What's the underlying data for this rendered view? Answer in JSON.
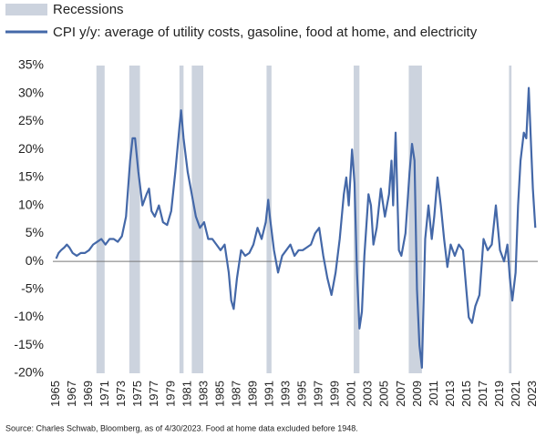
{
  "chart_data": {
    "type": "line",
    "source": "Source: Charles Schwab, Bloomberg, as of 4/30/2023. Food at home data excluded before 1948.",
    "recessions": {
      "name": "Recessions",
      "color": "#ccd3de",
      "periods": [
        [
          1969.9,
          1970.9
        ],
        [
          1973.9,
          1975.2
        ],
        [
          1980.0,
          1980.5
        ],
        [
          1981.5,
          1982.9
        ],
        [
          1990.6,
          1991.2
        ],
        [
          2001.2,
          2001.9
        ],
        [
          2007.9,
          2009.5
        ],
        [
          2020.1,
          2020.4
        ]
      ]
    },
    "x": [
      1965.0,
      1965.3,
      1965.6,
      1966.0,
      1966.3,
      1966.6,
      1967.0,
      1967.5,
      1968.0,
      1968.5,
      1969.0,
      1969.5,
      1970.0,
      1970.5,
      1971.0,
      1971.5,
      1972.0,
      1972.5,
      1973.0,
      1973.5,
      1974.0,
      1974.3,
      1974.6,
      1975.0,
      1975.5,
      1976.0,
      1976.3,
      1976.6,
      1977.0,
      1977.5,
      1978.0,
      1978.5,
      1979.0,
      1979.5,
      1980.0,
      1980.2,
      1980.5,
      1981.0,
      1981.5,
      1982.0,
      1982.5,
      1983.0,
      1983.5,
      1984.0,
      1984.5,
      1985.0,
      1985.5,
      1986.0,
      1986.3,
      1986.6,
      1987.0,
      1987.5,
      1988.0,
      1988.5,
      1989.0,
      1989.5,
      1990.0,
      1990.5,
      1990.8,
      1991.0,
      1991.5,
      1992.0,
      1992.5,
      1993.0,
      1993.5,
      1994.0,
      1994.5,
      1995.0,
      1995.5,
      1996.0,
      1996.5,
      1997.0,
      1997.5,
      1998.0,
      1998.5,
      1999.0,
      1999.5,
      2000.0,
      2000.3,
      2000.6,
      2001.0,
      2001.3,
      2001.6,
      2001.9,
      2002.2,
      2002.5,
      2003.0,
      2003.3,
      2003.6,
      2004.0,
      2004.5,
      2005.0,
      2005.5,
      2005.8,
      2006.0,
      2006.3,
      2006.7,
      2007.0,
      2007.5,
      2008.0,
      2008.3,
      2008.6,
      2008.9,
      2009.2,
      2009.5,
      2009.9,
      2010.3,
      2010.7,
      2011.0,
      2011.4,
      2011.8,
      2012.2,
      2012.6,
      2013.0,
      2013.5,
      2014.0,
      2014.5,
      2014.9,
      2015.2,
      2015.6,
      2016.0,
      2016.5,
      2017.0,
      2017.5,
      2018.0,
      2018.5,
      2019.0,
      2019.5,
      2019.9,
      2020.2,
      2020.5,
      2020.9,
      2021.2,
      2021.5,
      2021.9,
      2022.2,
      2022.5,
      2022.8,
      2023.0,
      2023.3
    ],
    "series": [
      {
        "name": "CPI y/y: average of utility costs, gasoline, food at home, and electricity",
        "color": "#4468a8",
        "values": [
          0.5,
          1.5,
          2,
          2.5,
          3,
          2.5,
          1.5,
          1,
          1.5,
          1.5,
          2,
          3,
          3.5,
          4,
          3,
          4,
          4,
          3.5,
          4.5,
          8,
          18,
          22,
          22,
          16,
          10,
          12,
          13,
          9,
          8,
          10,
          7,
          6.5,
          9,
          16,
          24,
          27,
          22,
          16,
          12,
          8,
          6,
          7,
          4,
          4,
          3,
          2,
          3,
          -2,
          -7,
          -8.5,
          -3,
          2,
          1,
          1.5,
          3,
          6,
          4,
          7,
          11,
          8,
          2,
          -2,
          1,
          2,
          3,
          1,
          2,
          2,
          2.5,
          3,
          5,
          6,
          1,
          -3,
          -6,
          -2,
          4,
          12,
          15,
          10,
          20,
          14,
          -2,
          -12,
          -9,
          1,
          12,
          10,
          3,
          6,
          13,
          8,
          12,
          18,
          10,
          23,
          2,
          1,
          5,
          16,
          21,
          18,
          -5,
          -15,
          -19,
          4,
          10,
          4,
          8,
          15,
          10,
          4,
          -1,
          3,
          1,
          3,
          2,
          -5,
          -10,
          -11,
          -8,
          -6,
          4,
          2,
          3,
          10,
          2,
          0,
          3,
          -3,
          -7,
          -2,
          10,
          18,
          23,
          22,
          31,
          20,
          13,
          6
        ]
      }
    ],
    "xlim": [
      1964.6,
      2023.6
    ],
    "xticks": [
      1965,
      1967,
      1969,
      1971,
      1973,
      1975,
      1977,
      1979,
      1981,
      1983,
      1985,
      1987,
      1989,
      1991,
      1993,
      1995,
      1997,
      1999,
      2001,
      2003,
      2005,
      2007,
      2009,
      2011,
      2013,
      2015,
      2017,
      2019,
      2021,
      2023
    ],
    "ylim": [
      -20,
      35
    ],
    "yticks": [
      {
        "value": -20,
        "label": "-20%"
      },
      {
        "value": -15,
        "label": "-15%"
      },
      {
        "value": -10,
        "label": "-10%"
      },
      {
        "value": -5,
        "label": "-5%"
      },
      {
        "value": 0,
        "label": "0%"
      },
      {
        "value": 5,
        "label": "5%"
      },
      {
        "value": 10,
        "label": "10%"
      },
      {
        "value": 15,
        "label": "15%"
      },
      {
        "value": 20,
        "label": "20%"
      },
      {
        "value": 25,
        "label": "25%"
      },
      {
        "value": 30,
        "label": "30%"
      },
      {
        "value": 35,
        "label": "35%"
      }
    ]
  }
}
